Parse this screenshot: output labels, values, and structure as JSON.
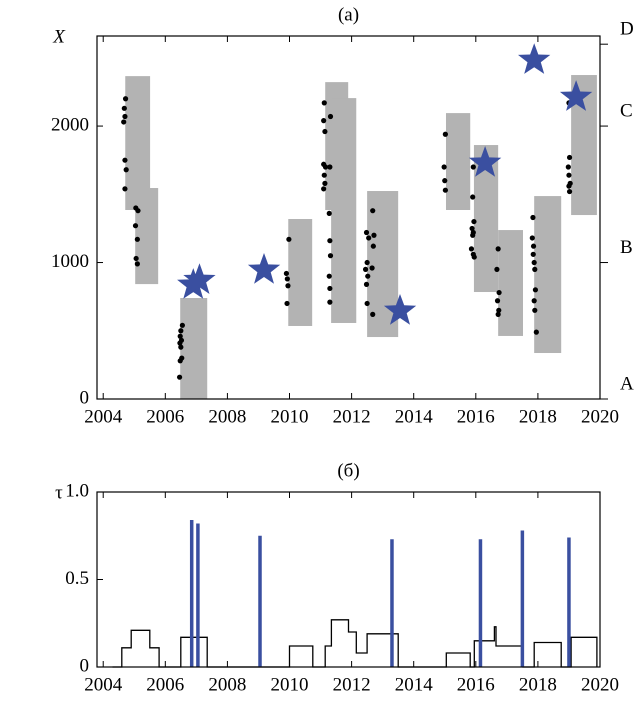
{
  "chart_data": [
    {
      "type": "scatter",
      "title": "(a)",
      "ylabel": "X",
      "xlim": [
        2003.8,
        2020
      ],
      "xticks": [
        2004,
        2006,
        2008,
        2010,
        2012,
        2014,
        2016,
        2018,
        2020
      ],
      "ylim": [
        0,
        2660
      ],
      "yticks": [
        0,
        1000,
        2000
      ],
      "y2lim": [
        0,
        2660
      ],
      "y2ticks": [
        {
          "value": 0,
          "label": "A"
        },
        {
          "value": 1000,
          "label": "B"
        },
        {
          "value": 2000,
          "label": "C"
        },
        {
          "value": 2600,
          "label": "D"
        }
      ],
      "intervals": {
        "color": "#b3b3b3",
        "x_start": [
          2004.71,
          2005.03,
          2006.48,
          2009.96,
          2011.15,
          2011.34,
          2012.5,
          2015.04,
          2015.94,
          2016.72,
          2017.88,
          2019.07
        ],
        "x_end": [
          2005.51,
          2005.77,
          2007.35,
          2010.73,
          2011.89,
          2012.15,
          2013.5,
          2015.82,
          2016.72,
          2017.52,
          2018.75,
          2019.9
        ],
        "y_low": [
          1385,
          842,
          0,
          535,
          1385,
          557,
          454,
          1385,
          784,
          462,
          337,
          1348
        ],
        "y_high": [
          2366,
          1546,
          740,
          1319,
          2322,
          2205,
          1524,
          2095,
          1861,
          1238,
          1487,
          2374
        ]
      },
      "points": {
        "color": "#000000",
        "x": [
          2004.72,
          2004.68,
          2004.7,
          2004.66,
          2004.7,
          2004.74,
          2004.7,
          2005.05,
          2005.12,
          2005.04,
          2005.1,
          2005.06,
          2005.1,
          2006.55,
          2006.5,
          2006.48,
          2006.52,
          2006.47,
          2006.5,
          2006.53,
          2006.48,
          2006.46,
          2009.98,
          2009.9,
          2009.93,
          2009.95,
          2009.92,
          2011.12,
          2011.1,
          2011.14,
          2011.1,
          2011.16,
          2011.12,
          2011.14,
          2011.1,
          2011.32,
          2011.3,
          2011.28,
          2011.3,
          2011.32,
          2011.28,
          2011.3,
          2011.3,
          2012.48,
          2012.55,
          2012.5,
          2012.45,
          2012.52,
          2012.48,
          2012.5,
          2012.68,
          2012.72,
          2012.7,
          2012.66,
          2012.68,
          2015.02,
          2014.98,
          2015.0,
          2015.02,
          2015.92,
          2015.9,
          2015.94,
          2015.88,
          2015.92,
          2015.9,
          2015.86,
          2015.92,
          2015.95,
          2016.72,
          2016.68,
          2016.75,
          2016.7,
          2016.74,
          2016.72,
          2017.84,
          2017.82,
          2017.86,
          2017.85,
          2017.88,
          2017.9,
          2017.92,
          2017.88,
          2017.9,
          2017.95,
          2019.0,
          2019.02,
          2018.98,
          2019.0,
          2019.04,
          2019.0,
          2019.02
        ],
        "y": [
          2200,
          2130,
          2070,
          2030,
          1750,
          1680,
          1540,
          1400,
          1380,
          1270,
          1170,
          1030,
          990,
          540,
          500,
          460,
          430,
          410,
          380,
          300,
          280,
          160,
          1170,
          920,
          880,
          830,
          700,
          2170,
          2040,
          1960,
          1720,
          1700,
          1640,
          1580,
          1540,
          2070,
          1700,
          1360,
          1160,
          1050,
          900,
          810,
          710,
          1220,
          1180,
          1000,
          950,
          900,
          840,
          700,
          1380,
          1200,
          1120,
          960,
          620,
          1940,
          1700,
          1600,
          1530,
          1700,
          1480,
          1300,
          1250,
          1220,
          1200,
          1100,
          1060,
          1040,
          1100,
          950,
          780,
          720,
          650,
          620,
          1330,
          1180,
          1120,
          1060,
          1000,
          950,
          800,
          720,
          650,
          490,
          2170,
          1770,
          1700,
          1640,
          1580,
          1560,
          1520
        ]
      },
      "stars": {
        "color": "#3a4fa0",
        "x": [
          2006.9,
          2007.1,
          2009.18,
          2013.56,
          2016.3,
          2017.88,
          2019.23
        ],
        "y": [
          835,
          870,
          945,
          645,
          1729,
          2483,
          2212
        ]
      }
    },
    {
      "type": "line",
      "title": "(б)",
      "ylabel": "τ",
      "xlim": [
        2003.8,
        2020
      ],
      "xticks": [
        2004,
        2006,
        2008,
        2010,
        2012,
        2014,
        2016,
        2018,
        2020
      ],
      "ylim": [
        0,
        1
      ],
      "yticks": [
        0,
        0.5,
        {
          "value": 1,
          "label": "1.0"
        }
      ],
      "line": {
        "color": "#000000",
        "x": [
          2004.3,
          2004.6,
          2004.6,
          2004.9,
          2004.9,
          2005.5,
          2005.5,
          2005.8,
          2005.8,
          2006.5,
          2006.5,
          2007.35,
          2007.35,
          2010.0,
          2010.0,
          2010.75,
          2010.75,
          2011.15,
          2011.15,
          2011.35,
          2011.35,
          2011.9,
          2011.9,
          2012.15,
          2012.15,
          2012.5,
          2012.5,
          2013.5,
          2013.5,
          2015.05,
          2015.05,
          2015.82,
          2015.82,
          2015.95,
          2015.95,
          2016.6,
          2016.6,
          2016.65,
          2016.65,
          2017.52,
          2017.52,
          2017.88,
          2017.88,
          2018.75,
          2018.75,
          2019.07,
          2019.07,
          2019.9,
          2019.9
        ],
        "values": [
          0,
          0,
          0.11,
          0.11,
          0.21,
          0.21,
          0.11,
          0.11,
          0,
          0,
          0.17,
          0.17,
          0,
          0,
          0.12,
          0.12,
          0,
          0,
          0.12,
          0.12,
          0.27,
          0.27,
          0.2,
          0.2,
          0.08,
          0.08,
          0.19,
          0.19,
          0,
          0,
          0.08,
          0.08,
          0,
          0,
          0.15,
          0.15,
          0.23,
          0.23,
          0.12,
          0.12,
          0,
          0,
          0.14,
          0.14,
          0,
          0,
          0.17,
          0.17,
          0
        ]
      },
      "bars": {
        "color": "#3a4fa0",
        "x": [
          2006.85,
          2007.05,
          2009.05,
          2013.3,
          2016.15,
          2017.5,
          2019.0
        ],
        "values": [
          0.84,
          0.82,
          0.75,
          0.73,
          0.73,
          0.78,
          0.74
        ]
      }
    }
  ]
}
